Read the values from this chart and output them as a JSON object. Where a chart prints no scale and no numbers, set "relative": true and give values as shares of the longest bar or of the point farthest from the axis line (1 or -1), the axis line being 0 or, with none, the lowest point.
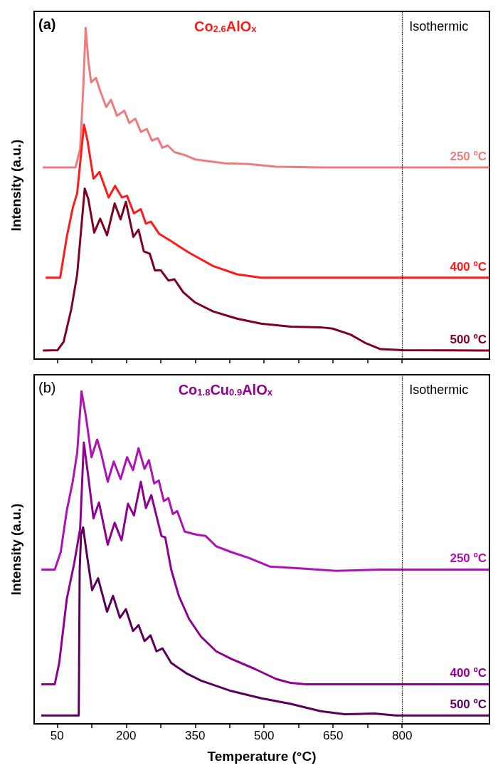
{
  "chart_data": [
    {
      "type": "line",
      "title": "Co$_{2.6}$AlO$_{x}$",
      "ylabel": "Intensity (a.u.)",
      "annotations": [
        "(a)"
      ],
      "relative": true,
      "marker": "none",
      "tick_labels": false,
      "xlim": [
        0,
        990
      ],
      "xticks": [
        50,
        {
          "value": 125,
          "label": null
        },
        200,
        {
          "value": 275,
          "label": null
        },
        350,
        {
          "value": 425,
          "label": null
        },
        500,
        {
          "value": 575,
          "label": null
        },
        650,
        {
          "value": 725,
          "label": null
        },
        800
      ],
      "ref_lines": [
        {
          "axis": "x",
          "value": 800,
          "label": "Isothermic",
          "line_style": "dotted",
          "color": "#000000"
        }
      ],
      "series": [
        {
          "name": "250 ºC",
          "color": "#ec7c7e",
          "x": [
            19,
            90,
            100,
            106.5,
            112,
            118,
            124,
            134.5,
            143.6,
            156.6,
            167,
            180,
            196,
            207,
            220,
            232,
            245,
            256,
            269,
            279,
            290.5,
            305,
            327.5,
            350,
            376,
            415,
            467,
            526,
            623,
            802,
            990
          ],
          "values": [
            0.579,
            0.579,
            0.634,
            0.81,
            1.0,
            0.898,
            0.836,
            0.849,
            0.81,
            0.761,
            0.783,
            0.735,
            0.75,
            0.713,
            0.726,
            0.686,
            0.695,
            0.66,
            0.667,
            0.638,
            0.645,
            0.625,
            0.616,
            0.603,
            0.598,
            0.591,
            0.589,
            0.581,
            0.579,
            0.579,
            0.579
          ]
        },
        {
          "name": "400 ºC",
          "color": "#ff1a1a",
          "x": [
            25,
            56.5,
            71,
            84,
            93.5,
            103,
            108.5,
            116,
            129,
            142,
            162,
            176,
            191,
            202,
            217,
            232,
            243,
            254,
            272,
            298,
            337,
            389,
            441,
            493,
            990
          ],
          "values": [
            0.246,
            0.246,
            0.369,
            0.457,
            0.501,
            0.633,
            0.708,
            0.66,
            0.545,
            0.565,
            0.488,
            0.523,
            0.488,
            0.493,
            0.44,
            0.453,
            0.409,
            0.415,
            0.378,
            0.356,
            0.321,
            0.281,
            0.256,
            0.246,
            0.246
          ]
        },
        {
          "name": "500 ºC",
          "color": "#800020",
          "x": [
            19,
            51,
            64,
            80.5,
            93.5,
            103,
            110,
            117.6,
            130.6,
            143.6,
            158.5,
            175,
            188,
            199.5,
            215.7,
            227,
            238.5,
            251.5,
            262.5,
            275.5,
            292,
            305,
            324,
            350,
            389,
            441,
            493,
            558,
            623,
            649,
            688,
            721,
            753,
            802,
            990
          ],
          "values": [
            0.026,
            0.027,
            0.052,
            0.149,
            0.255,
            0.404,
            0.515,
            0.484,
            0.382,
            0.424,
            0.374,
            0.47,
            0.422,
            0.475,
            0.369,
            0.391,
            0.325,
            0.318,
            0.268,
            0.268,
            0.237,
            0.241,
            0.202,
            0.171,
            0.144,
            0.122,
            0.107,
            0.098,
            0.096,
            0.092,
            0.074,
            0.048,
            0.03,
            0.027,
            0.026
          ]
        }
      ]
    },
    {
      "type": "line",
      "title": "Co$_{1.8}$Cu$_{0.9}$AlO$_{x}$",
      "xlabel": "Temperature (°C)",
      "ylabel": "Intensity (a.u.)",
      "annotations": [
        "(b)"
      ],
      "relative": true,
      "marker": "none",
      "tick_labels": "x",
      "xlim": [
        0,
        990
      ],
      "xticks": [
        50,
        {
          "value": 125,
          "label": null
        },
        200,
        {
          "value": 275,
          "label": null
        },
        350,
        {
          "value": 425,
          "label": null
        },
        500,
        {
          "value": 575,
          "label": null
        },
        650,
        {
          "value": 725,
          "label": null
        },
        800
      ],
      "ref_lines": [
        {
          "axis": "x",
          "value": 800,
          "label": "Isothermic",
          "line_style": "dotted",
          "color": "#000000"
        }
      ],
      "series": [
        {
          "name": "250 ºC",
          "color": "#b010b8",
          "x": [
            15.6,
            44.8,
            57.8,
            70.8,
            83.8,
            93.5,
            103,
            113,
            124.7,
            137,
            145.5,
            160,
            173,
            188,
            202,
            215,
            227,
            240,
            249.5,
            261,
            271,
            282,
            292,
            301.5,
            311,
            327.5,
            353.5,
            373,
            396,
            428,
            467,
            513,
            571,
            656,
            753,
            990
          ],
          "values": [
            0.464,
            0.464,
            0.517,
            0.64,
            0.728,
            0.815,
            1.0,
            0.921,
            0.802,
            0.855,
            0.815,
            0.728,
            0.789,
            0.736,
            0.802,
            0.763,
            0.829,
            0.767,
            0.793,
            0.723,
            0.732,
            0.67,
            0.679,
            0.631,
            0.64,
            0.578,
            0.569,
            0.565,
            0.534,
            0.517,
            0.499,
            0.473,
            0.468,
            0.46,
            0.464,
            0.464
          ]
        },
        {
          "name": "400 ºC",
          "color": "#900090",
          "x": [
            15.6,
            44.8,
            54.5,
            71,
            87,
            100,
            108,
            117.6,
            129,
            141,
            160,
            175,
            190,
            204,
            217,
            232,
            243,
            254.7,
            276.8,
            285,
            298,
            314.5,
            337,
            363,
            396,
            428,
            480,
            526,
            558,
            591,
            990
          ],
          "values": [
            0.119,
            0.119,
            0.183,
            0.376,
            0.482,
            0.587,
            0.846,
            0.745,
            0.618,
            0.666,
            0.539,
            0.605,
            0.552,
            0.662,
            0.627,
            0.728,
            0.649,
            0.688,
            0.565,
            0.561,
            0.464,
            0.385,
            0.315,
            0.262,
            0.218,
            0.196,
            0.165,
            0.135,
            0.123,
            0.119,
            0.119
          ]
        },
        {
          "name": "500 ºC",
          "color": "#5a005a",
          "x": [
            15.6,
            97,
            99,
            102,
            106.5,
            113,
            126,
            139,
            158.5,
            171.5,
            186.5,
            199.5,
            215,
            227,
            240,
            253,
            266,
            279,
            298,
            331,
            363,
            428,
            493,
            558,
            623,
            675,
            740,
            786,
            990
          ],
          "values": [
            0.025,
            0.025,
            0.464,
            0.569,
            0.591,
            0.525,
            0.402,
            0.438,
            0.337,
            0.385,
            0.319,
            0.345,
            0.279,
            0.297,
            0.249,
            0.266,
            0.218,
            0.227,
            0.183,
            0.152,
            0.13,
            0.099,
            0.077,
            0.06,
            0.038,
            0.029,
            0.031,
            0.025,
            0.025
          ]
        }
      ]
    }
  ]
}
